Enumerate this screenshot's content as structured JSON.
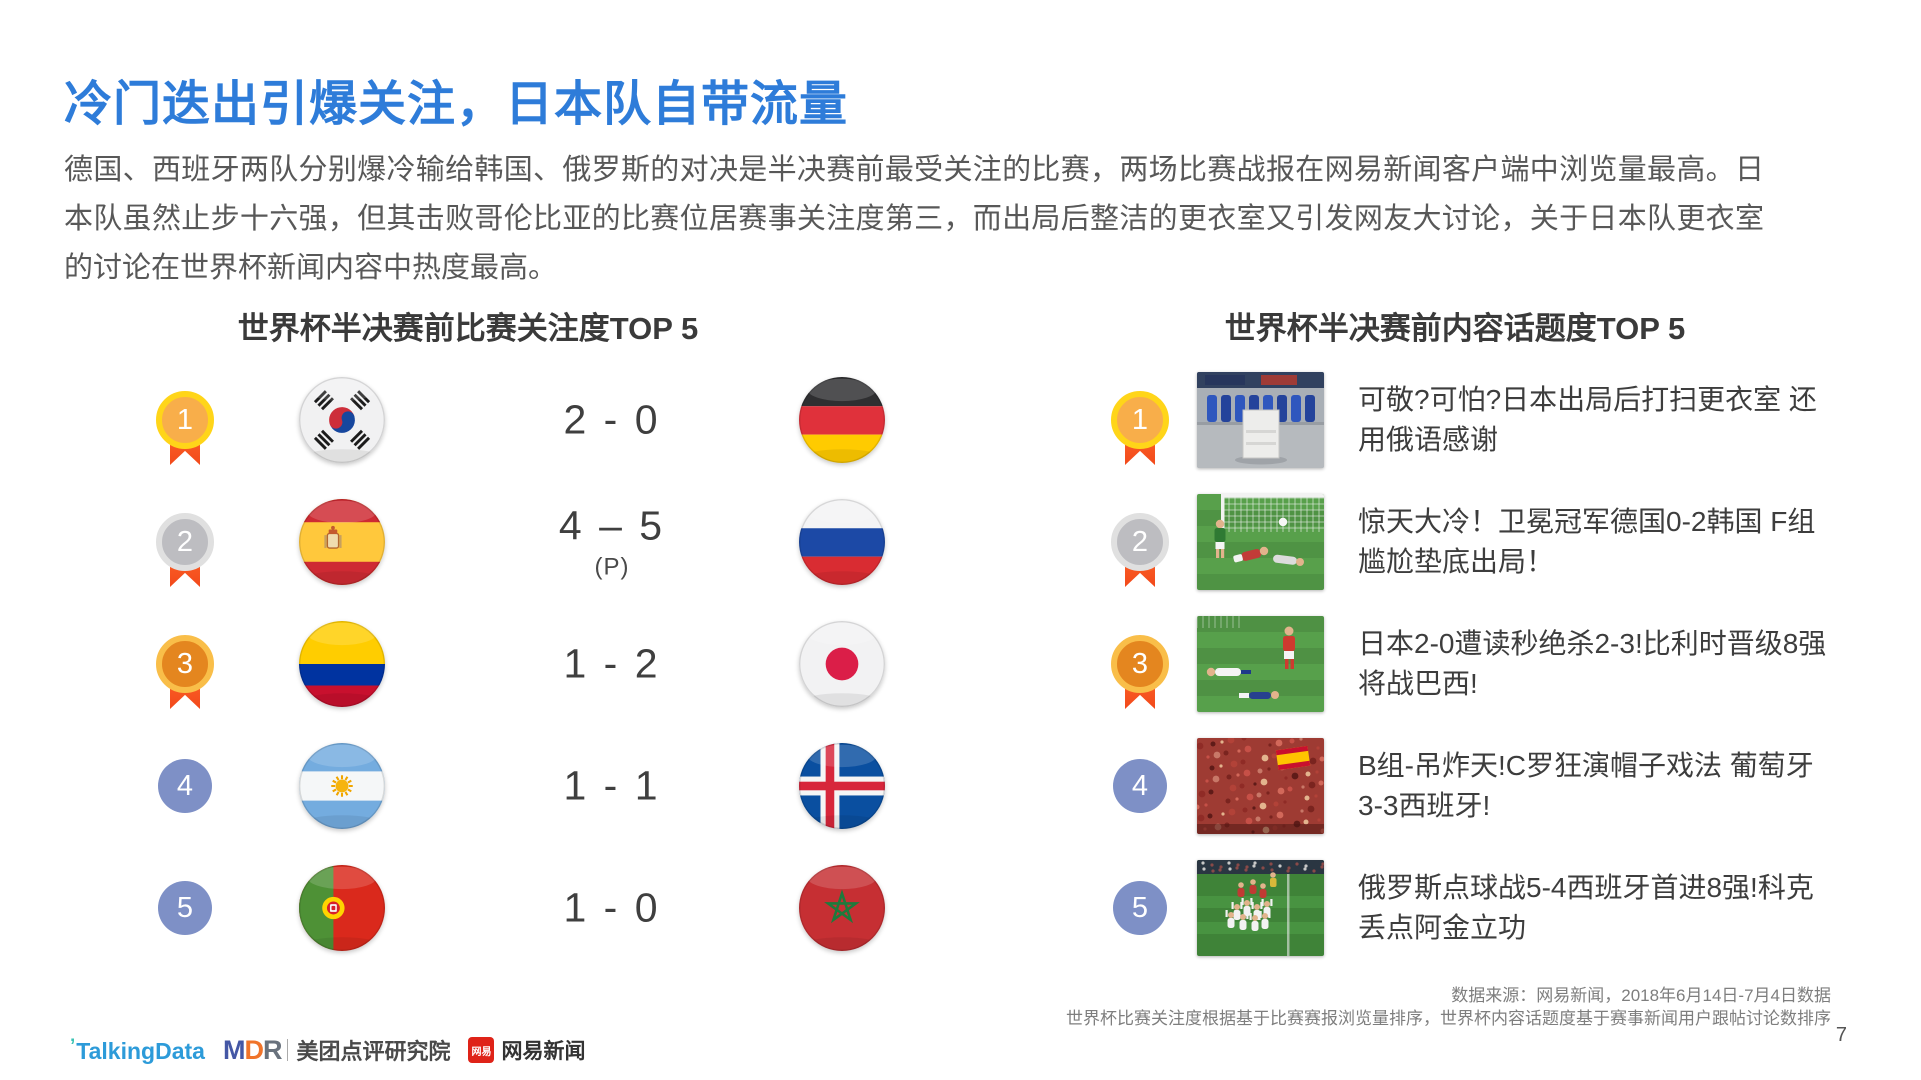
{
  "title": "冷门迭出引爆关注，日本队自带流量",
  "paragraph": "德国、西班牙两队分别爆冷输给韩国、俄罗斯的对决是半决赛前最受关注的比赛，两场比赛战报在网易新闻客户端中浏览量最高。日本队虽然止步十六强，但其击败哥伦比亚的比赛位居赛事关注度第三，而出局后整洁的更衣室又引发网友大讨论，关于日本队更衣室的讨论在世界杯新闻内容中热度最高。",
  "colors": {
    "title_blue": "#2E7CD9",
    "heading_gray": "#3A3A3A",
    "body_gray": "#585858",
    "rank_circle_blue": "#7E90C6",
    "medal_gold": "#FFD519",
    "medal_silver": "#E0E0E0",
    "medal_bronze": "#F9BE49",
    "ribbon_orange": "#F2491B",
    "talkingdata_blue": "#2D9BD9",
    "netease_red": "#DF2318"
  },
  "left_section": {
    "title": "世界杯半决赛前比赛关注度TOP 5",
    "rows": [
      {
        "rank": 1,
        "medal": "gold",
        "home_flag": "south-korea",
        "score": "2 - 0",
        "score_note": "",
        "away_flag": "germany"
      },
      {
        "rank": 2,
        "medal": "silver",
        "home_flag": "spain",
        "score": "4 – 5",
        "score_note": "(P)",
        "away_flag": "russia"
      },
      {
        "rank": 3,
        "medal": "bronze",
        "home_flag": "colombia",
        "score": "1 - 2",
        "score_note": "",
        "away_flag": "japan"
      },
      {
        "rank": 4,
        "medal": "plain",
        "home_flag": "argentina",
        "score": "1 - 1",
        "score_note": "",
        "away_flag": "iceland"
      },
      {
        "rank": 5,
        "medal": "plain",
        "home_flag": "portugal",
        "score": "1 - 0",
        "score_note": "",
        "away_flag": "morocco"
      }
    ]
  },
  "right_section": {
    "title": "世界杯半决赛前内容话题度TOP 5",
    "rows": [
      {
        "rank": 1,
        "medal": "gold",
        "thumbnail": "locker-room",
        "headline": "可敬?可怕?日本出局后打扫更衣室 还用俄语感谢"
      },
      {
        "rank": 2,
        "medal": "silver",
        "thumbnail": "germany-korea-goal",
        "headline": "惊天大冷！卫冕冠军德国0-2韩国 F组尴尬垫底出局！"
      },
      {
        "rank": 3,
        "medal": "bronze",
        "thumbnail": "japan-belgium",
        "headline": "日本2-0遭读秒绝杀2-3!比利时晋级8强将战巴西!"
      },
      {
        "rank": 4,
        "medal": "plain",
        "thumbnail": "spain-fans",
        "headline": "B组-吊炸天!C罗狂演帽子戏法 葡萄牙3-3西班牙!"
      },
      {
        "rank": 5,
        "medal": "plain",
        "thumbnail": "russia-celebration",
        "headline": "俄罗斯点球战5-4西班牙首进8强!科克丢点阿金立功"
      }
    ]
  },
  "footer": {
    "source_line1": "数据来源：网易新闻，2018年6月14日-7月4日数据",
    "source_line2": "世界杯比赛关注度根据基于比赛赛报浏览量排序，世界杯内容话题度基于赛事新闻用户跟帖讨论数排序",
    "page_number": "7",
    "logos": {
      "talkingdata": "TalkingData",
      "mdr": "MDR",
      "meituan": "美团点评研究院",
      "netease_badge": "网易",
      "netease_news": "网易新闻"
    }
  }
}
